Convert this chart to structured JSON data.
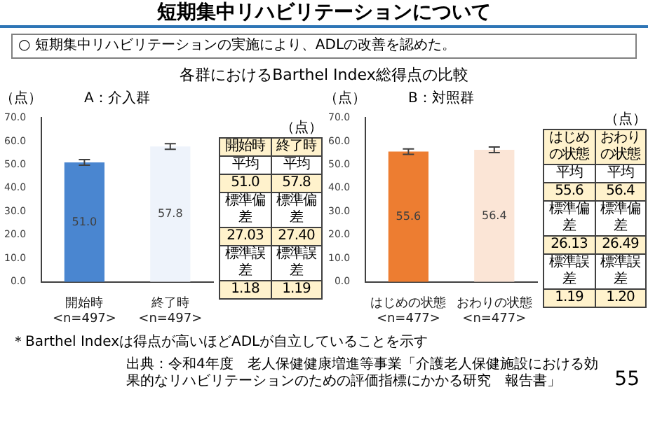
{
  "chart_data": [
    {
      "type": "bar",
      "title": "A：介入群",
      "ylabel": "（点）",
      "categories": [
        "開始時<n=497>",
        "終了時<n=497>"
      ],
      "values": [
        51.0,
        57.8
      ],
      "colors": [
        "#4a86d0",
        "#eef3fb"
      ],
      "errors": [
        1.18,
        1.19
      ],
      "value_labels": [
        "51.0",
        "57.8"
      ],
      "ylim": [
        0,
        70
      ],
      "yticks": [
        {
          "value": 0,
          "label": "0.0"
        },
        {
          "value": 10,
          "label": "10.0"
        },
        {
          "value": 20,
          "label": "20.0"
        },
        {
          "value": 30,
          "label": "30.0"
        },
        {
          "value": 40,
          "label": "40.0"
        },
        {
          "value": 50,
          "label": "50.0"
        },
        {
          "value": 60,
          "label": "60.0"
        },
        {
          "value": 70,
          "label": "70.0"
        }
      ],
      "grid": false,
      "annotations": [
        "短期集中リハビリテーションについて",
        "○ 短期集中リハビリテーションの実施により、ADLの改善を認めた。",
        "各群におけるBarthel Index総得点の比較",
        "（点）",
        "開始時",
        "終了時",
        "平均",
        "平均",
        "51.0",
        "57.8",
        "標準偏差",
        "標準偏差",
        "27.03",
        "27.40",
        "標準誤差",
        "標準誤差",
        "1.18",
        "1.19",
        "＊Barthel Indexは得点が高いほどADLが自立していることを示す",
        "出典：令和4年度　老人保健健康増進等事業「介護老人保健施設における効果的なリハビリテーションのための評価指標にかかる研究　報告書」",
        "55"
      ]
    },
    {
      "type": "bar",
      "title": "B：対照群",
      "ylabel": "（点）",
      "categories": [
        "はじめの状態<n=477>",
        "おわりの状態<n=477>"
      ],
      "values": [
        55.6,
        56.4
      ],
      "colors": [
        "#ed7d31",
        "#fbe5d6"
      ],
      "errors": [
        1.19,
        1.2
      ],
      "value_labels": [
        "55.6",
        "56.4"
      ],
      "ylim": [
        0,
        70
      ],
      "yticks": [
        {
          "value": 0,
          "label": "0.0"
        },
        {
          "value": 10,
          "label": "10.0"
        },
        {
          "value": 20,
          "label": "20.0"
        },
        {
          "value": 30,
          "label": "30.0"
        },
        {
          "value": 40,
          "label": "40.0"
        },
        {
          "value": 50,
          "label": "50.0"
        },
        {
          "value": 60,
          "label": "60.0"
        },
        {
          "value": 70,
          "label": "70.0"
        }
      ],
      "grid": false,
      "annotations": [
        "（点）",
        "はじめの状態",
        "おわりの状態",
        "平均",
        "平均",
        "55.6",
        "56.4",
        "標準偏差",
        "標準偏差",
        "26.13",
        "26.49",
        "標準誤差",
        "標準誤差",
        "1.19",
        "1.20"
      ]
    }
  ]
}
